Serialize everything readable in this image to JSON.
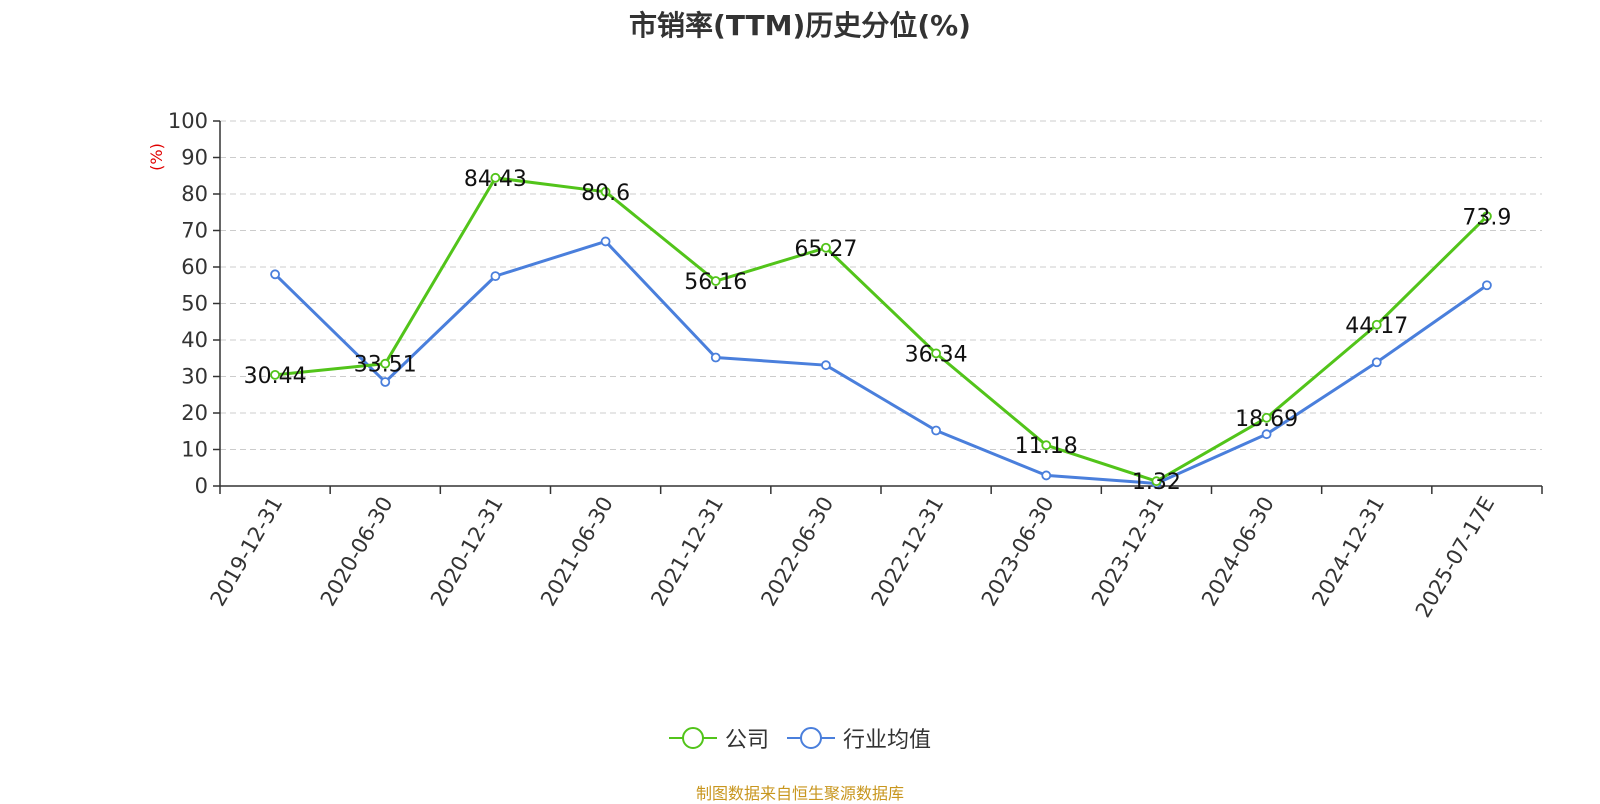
{
  "title": "市销率(TTM)历史分位(%)",
  "source": "制图数据来自恒生聚源数据库",
  "colors": {
    "company": "#52c41a",
    "industry": "#4a7fdc",
    "axis": "#333333",
    "grid": "#cccccc",
    "unit": "#e00000"
  },
  "legend": {
    "company_label": "公司",
    "industry_label": "行业均值"
  },
  "chart_data": {
    "type": "line",
    "title": "市销率(TTM)历史分位(%)",
    "ylabel": "(%)",
    "ylim": [
      0,
      100
    ],
    "yticks": [
      0,
      10,
      20,
      30,
      40,
      50,
      60,
      70,
      80,
      90,
      100
    ],
    "grid": true,
    "legend_position": "bottom",
    "categories": [
      "2019-12-31",
      "2020-06-30",
      "2020-12-31",
      "2021-06-30",
      "2021-12-31",
      "2022-06-30",
      "2022-12-31",
      "2023-06-30",
      "2023-12-31",
      "2024-06-30",
      "2024-12-31",
      "2025-07-17E"
    ],
    "series": [
      {
        "name": "公司",
        "values": [
          30.44,
          33.51,
          84.43,
          80.6,
          56.16,
          65.27,
          36.34,
          11.18,
          1.32,
          18.69,
          44.17,
          73.9
        ],
        "labels": [
          "30.44",
          "33.51",
          "84.43",
          "80.6",
          "56.16",
          "65.27",
          "36.34",
          "11.18",
          "1.32",
          "18.69",
          "44.17",
          "73.9"
        ]
      },
      {
        "name": "行业均值",
        "values": [
          58,
          28.5,
          57.5,
          67,
          35.2,
          33.1,
          15.2,
          2.9,
          0.7,
          14.2,
          33.9,
          55
        ]
      }
    ]
  }
}
